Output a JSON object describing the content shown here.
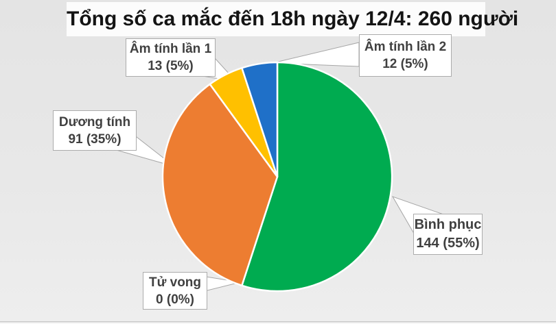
{
  "chart_data": {
    "type": "pie",
    "title": "Tổng số ca mắc đến 18h ngày 12/4: 260 người",
    "total": 260,
    "direction": "clockwise",
    "start_angle": "12-oclock",
    "legend_position": "none",
    "background_color": "#e8e8e8",
    "slice_border_color": "#ffffff",
    "slices": [
      {
        "label": "Bình phục",
        "value": 144,
        "percent": 55,
        "display": "144 (55%)",
        "color": "#00AB50"
      },
      {
        "label": "Tử vong",
        "value": 0,
        "percent": 0,
        "display": "0 (0%)",
        "color": null
      },
      {
        "label": "Dương tính",
        "value": 91,
        "percent": 35,
        "display": "91 (35%)",
        "color": "#ED7D31"
      },
      {
        "label": "Âm tính lần 1",
        "value": 13,
        "percent": 5,
        "display": "13 (5%)",
        "color": "#FFC000"
      },
      {
        "label": "Âm tính lần 2",
        "value": 12,
        "percent": 5,
        "display": "12 (5%)",
        "color": "#1F70C8"
      }
    ]
  }
}
